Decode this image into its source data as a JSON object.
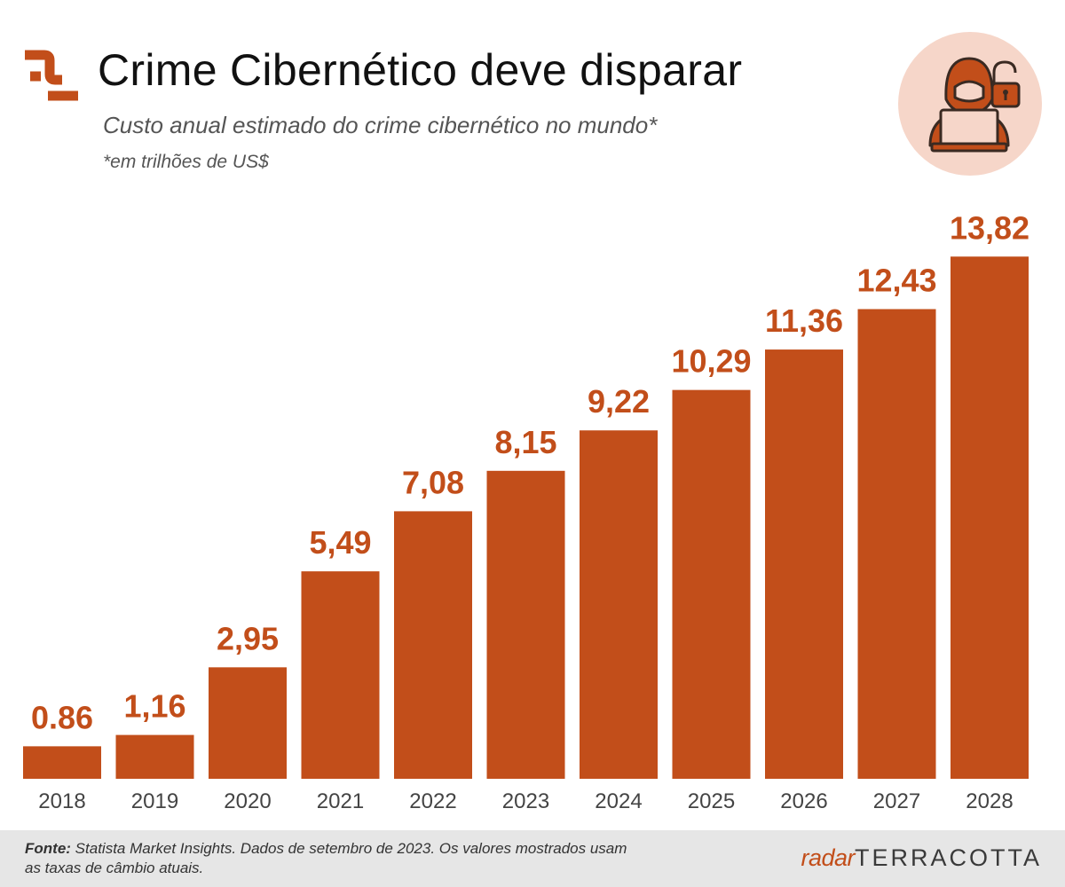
{
  "header": {
    "title": "Crime Cibernético deve disparar",
    "subtitle": "Custo anual estimado do crime cibernético no mundo*",
    "note": "*em trilhões de US$"
  },
  "footer": {
    "source_label": "Fonte:",
    "source_text": "Statista Market Insights. Dados de setembro de 2023. Os valores mostrados usam as taxas de câmbio atuais.",
    "brand_prefix": "radar",
    "brand_name": "TERRACOTTA"
  },
  "colors": {
    "bar": "#c24e1a",
    "label": "#c24e1a",
    "axis_text": "#444444",
    "badge_bg": "#f6d6c9"
  },
  "icons": [
    "brand-logo-icon",
    "hacker-icon",
    "padlock-icon"
  ],
  "chart_data": {
    "type": "bar",
    "title": "Crime Cibernético deve disparar",
    "subtitle": "Custo anual estimado do crime cibernético no mundo*",
    "ylabel": "trilhões de US$",
    "xlabel": "",
    "grid": false,
    "ylim": [
      0,
      15
    ],
    "categories": [
      "2018",
      "2019",
      "2020",
      "2021",
      "2022",
      "2023",
      "2024",
      "2025",
      "2026",
      "2027",
      "2028"
    ],
    "values": [
      0.86,
      1.16,
      2.95,
      5.49,
      7.08,
      8.15,
      9.22,
      10.29,
      11.36,
      12.43,
      13.82
    ],
    "value_labels": [
      "0.86",
      "1,16",
      "2,95",
      "5,49",
      "7,08",
      "8,15",
      "9,22",
      "10,29",
      "11,36",
      "12,43",
      "13,82"
    ]
  }
}
